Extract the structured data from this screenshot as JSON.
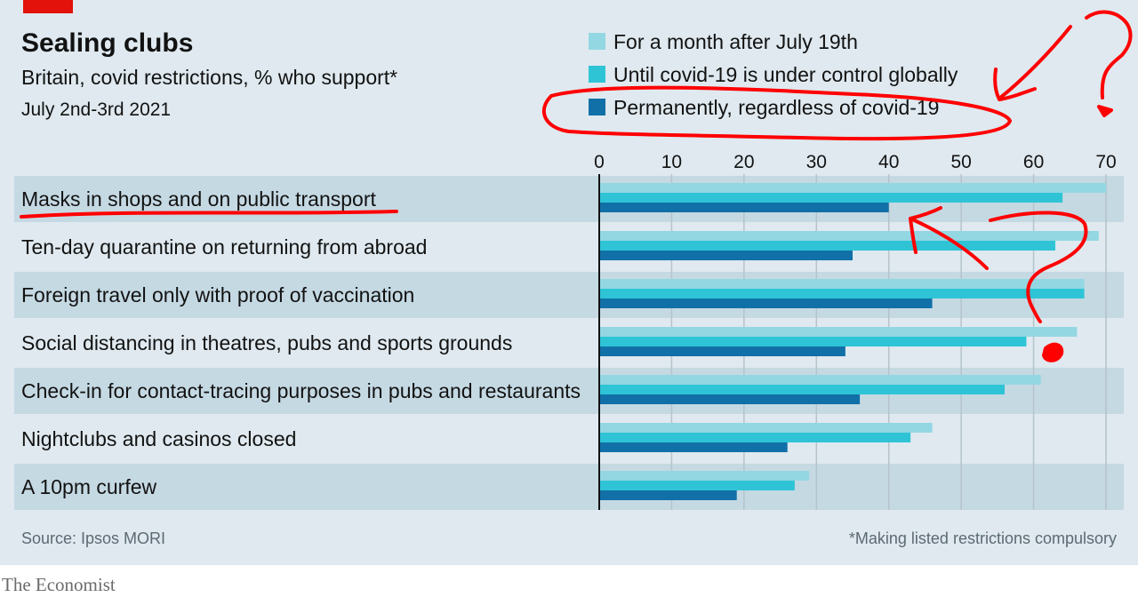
{
  "chart_data": {
    "type": "bar",
    "orientation": "horizontal",
    "title": "Sealing clubs",
    "subtitle": "Britain, covid restrictions, % who support*",
    "date": "July 2nd-3rd 2021",
    "categories": [
      "Masks in shops and on public transport",
      "Ten-day quarantine on returning from abroad",
      "Foreign travel only with proof of vaccination",
      "Social distancing in theatres, pubs and sports grounds",
      "Check-in for contact-tracing purposes in pubs and restaurants",
      "Nightclubs and casinos closed",
      "A 10pm curfew"
    ],
    "series": [
      {
        "name": "For a month after July 19th",
        "color": "#93d7e3",
        "values": [
          70,
          69,
          67,
          66,
          61,
          46,
          29
        ]
      },
      {
        "name": "Until covid-19 is under control globally",
        "color": "#2ec4d6",
        "values": [
          64,
          63,
          67,
          59,
          56,
          43,
          27
        ]
      },
      {
        "name": "Permanently, regardless of covid-19",
        "color": "#1270a8",
        "values": [
          40,
          35,
          46,
          34,
          36,
          26,
          19
        ]
      }
    ],
    "xlim": [
      0,
      70
    ],
    "xticks": [
      0,
      10,
      20,
      30,
      40,
      50,
      60,
      70
    ],
    "grid": true,
    "legend_position": "top-right",
    "source": "Source: Ipsos MORI",
    "footnote": "*Making listed restrictions compulsory",
    "brand": "The Economist"
  },
  "colors": {
    "panel": "#dfe9ef",
    "stripe": "#c5d9e3",
    "accent_red": "#e3120b",
    "axis": "#121212",
    "grid": "#b5c3cc",
    "source_text": "#5c6a73",
    "brand_text": "#6b6b6b",
    "annotation": "#ff0000"
  }
}
